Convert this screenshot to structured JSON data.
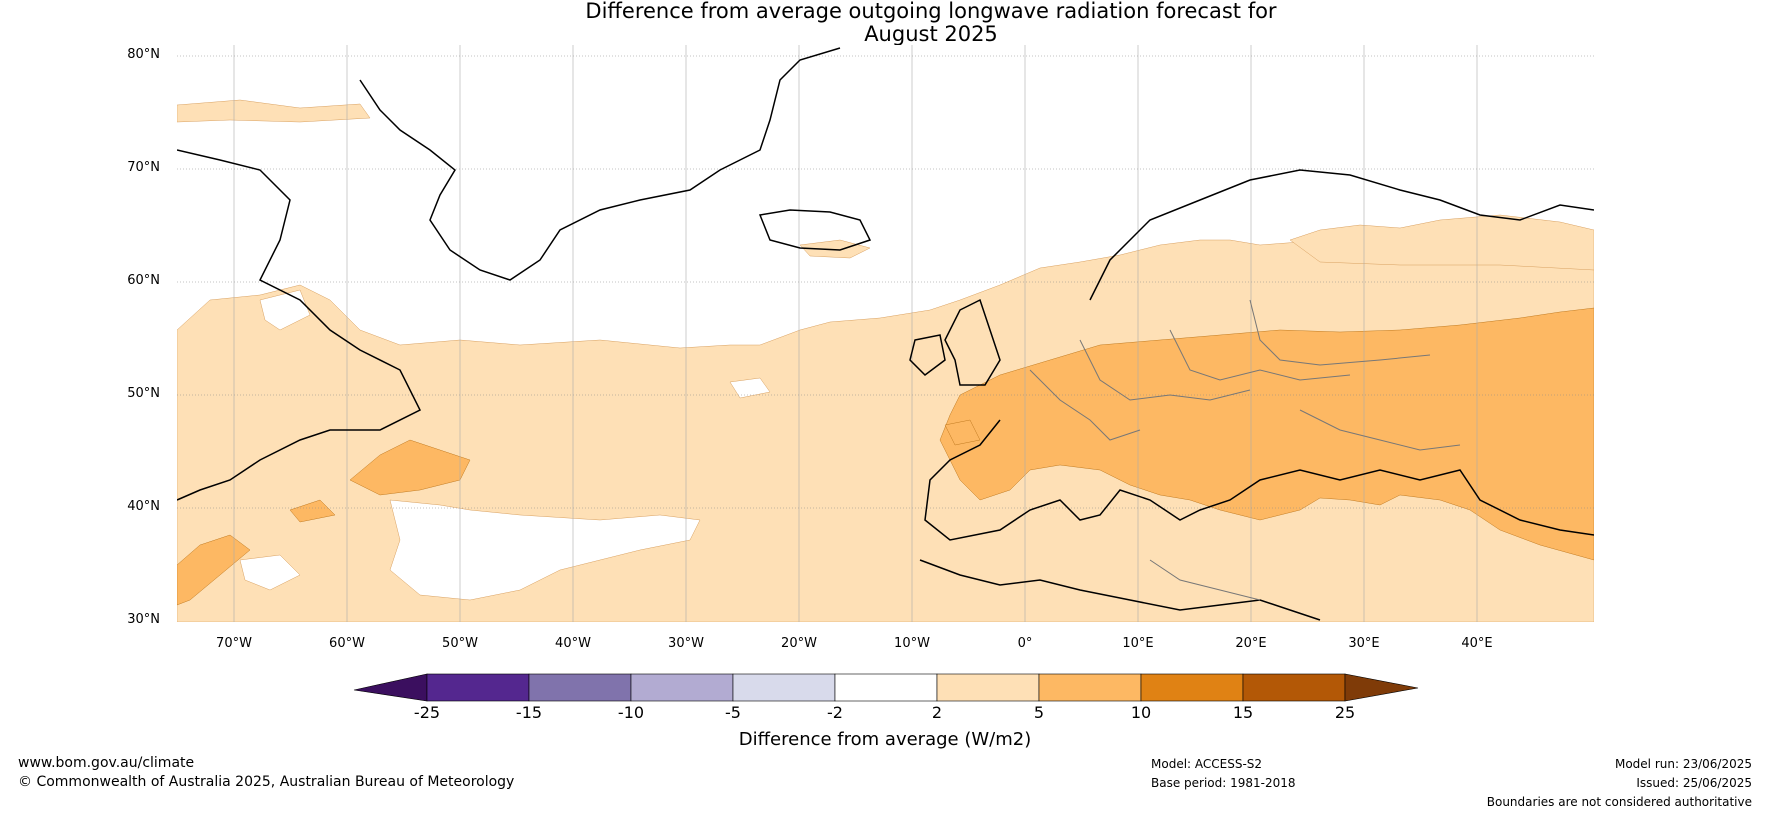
{
  "title_line1": "Difference from average outgoing longwave radiation forecast for",
  "title_line2": "August 2025",
  "lat_labels": [
    "80°N",
    "70°N",
    "60°N",
    "50°N",
    "40°N",
    "30°N"
  ],
  "lon_labels": [
    "70°W",
    "60°W",
    "50°W",
    "40°W",
    "30°W",
    "20°W",
    "10°W",
    "0°",
    "10°E",
    "20°E",
    "30°E",
    "40°E"
  ],
  "colorbar": {
    "ticks": [
      "-25",
      "-15",
      "-10",
      "-5",
      "-2",
      "2",
      "5",
      "10",
      "15",
      "25"
    ],
    "colors": [
      "#3b0f5f",
      "#54278f",
      "#8073ac",
      "#b2abd2",
      "#d8daeb",
      "#ffffff",
      "#fee0b6",
      "#fdb863",
      "#e08214",
      "#b35806",
      "#7f3b08"
    ],
    "caption": "Difference from average (W/m2)"
  },
  "footer": {
    "site": "www.bom.gov.au/climate",
    "copyright": "© Commonwealth of Australia 2025, Australian Bureau of Meteorology",
    "model": "Model: ACCESS-S2",
    "base_period": "Base period: 1981-2018",
    "model_run": "Model run: 23/06/2025",
    "issued": "Issued: 25/06/2025",
    "disclaimer": "Boundaries are not considered authoritative"
  }
}
